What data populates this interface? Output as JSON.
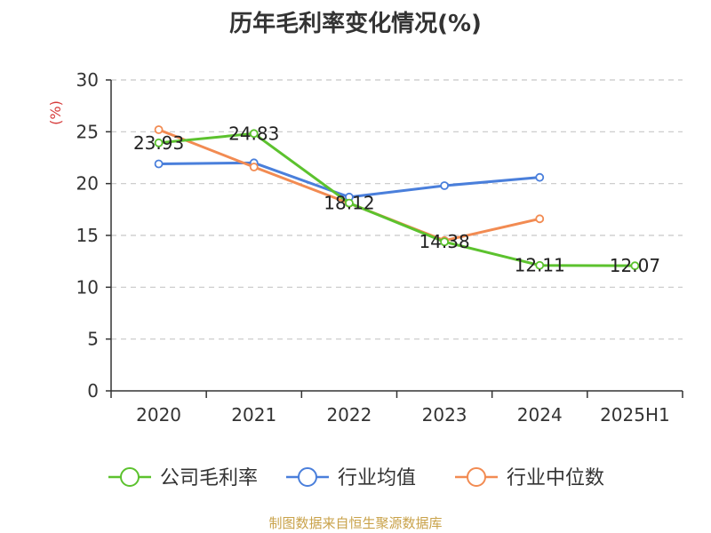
{
  "title": "历年毛利率变化情况(%)",
  "footer": "制图数据来自恒生聚源数据库",
  "chart_data": {
    "type": "line",
    "title": "历年毛利率变化情况(%)",
    "unit": "(%)",
    "categories": [
      "2020",
      "2021",
      "2022",
      "2023",
      "2024",
      "2025H1"
    ],
    "ylim": [
      0,
      30
    ],
    "yticks": [
      0,
      5,
      10,
      15,
      20,
      25,
      30
    ],
    "grid": true,
    "legend_position": "bottom",
    "series": [
      {
        "name": "公司毛利率",
        "color": "#5cc22e",
        "values": [
          23.93,
          24.83,
          18.12,
          14.38,
          12.11,
          12.07
        ],
        "labels": [
          "23.93",
          "24.83",
          "18.12",
          "14.38",
          "12.11",
          "12.07"
        ]
      },
      {
        "name": "行业均值",
        "color": "#4a7fdb",
        "values": [
          21.9,
          22.0,
          18.7,
          19.8,
          20.6,
          null
        ]
      },
      {
        "name": "行业中位数",
        "color": "#f28b52",
        "values": [
          25.2,
          21.6,
          18.1,
          14.5,
          16.6,
          null
        ]
      }
    ]
  }
}
